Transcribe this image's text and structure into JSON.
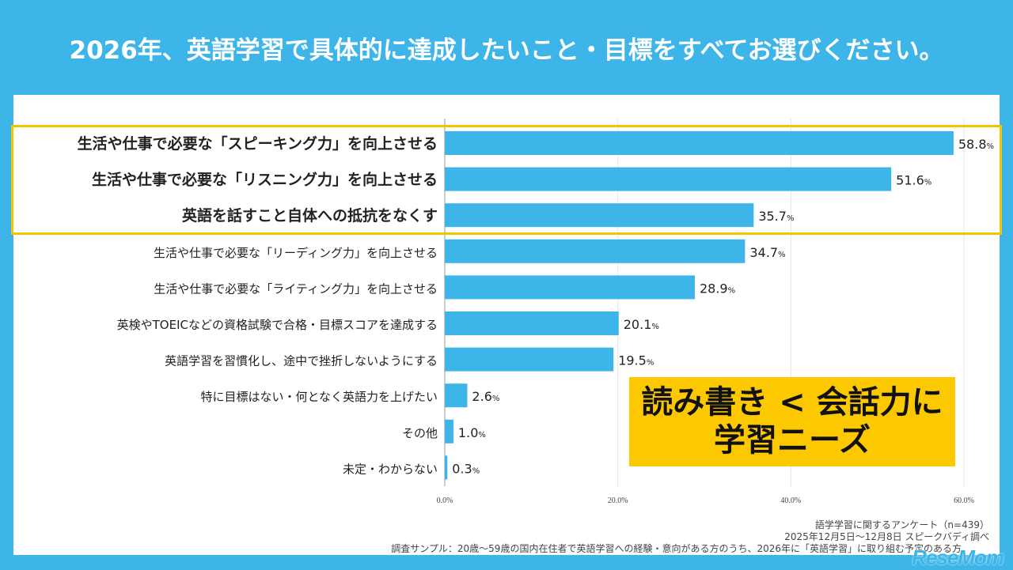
{
  "title": "2026年、英語学習で具体的に達成したいこと・目標をすべてお選びください。",
  "chart_data": {
    "type": "bar",
    "orientation": "horizontal",
    "categories": [
      "生活や仕事で必要な「スピーキング力」を向上させる",
      "生活や仕事で必要な「リスニング力」を向上させる",
      "英語を話すこと自体への抵抗をなくす",
      "生活や仕事で必要な「リーディング力」を向上させる",
      "生活や仕事で必要な「ライティング力」を向上させる",
      "英検やTOEICなどの資格試験で合格・目標スコアを達成する",
      "英語学習を習慣化し、途中で挫折しないようにする",
      "特に目標はない・何となく英語力を上げたい",
      "その他",
      "未定・わからない"
    ],
    "values": [
      58.8,
      51.6,
      35.7,
      34.7,
      28.9,
      20.1,
      19.5,
      2.6,
      1.0,
      0.3
    ],
    "highlighted": [
      0,
      1,
      2
    ],
    "value_suffix": "%",
    "xlim": [
      0,
      60
    ],
    "xticks": [
      "0.0%",
      "20.0%",
      "40.0%",
      "60.0%"
    ],
    "bar_color": "#3db5e8",
    "highlight_color": "#f5c400"
  },
  "callout": {
    "line1": "読み書き < 会話力に",
    "line2": "学習ニーズ"
  },
  "footer": {
    "line1": "語学学習に関するアンケート（n=439）",
    "line2": "2025年12月5日〜12月8日 スピークバディ調べ",
    "line3": "調査サンプル：20歳〜59歳の国内在住者で英語学習への経験・意向がある方のうち、2026年に「英語学習」に取り組む予定のある方"
  },
  "logo": "ReseMom"
}
